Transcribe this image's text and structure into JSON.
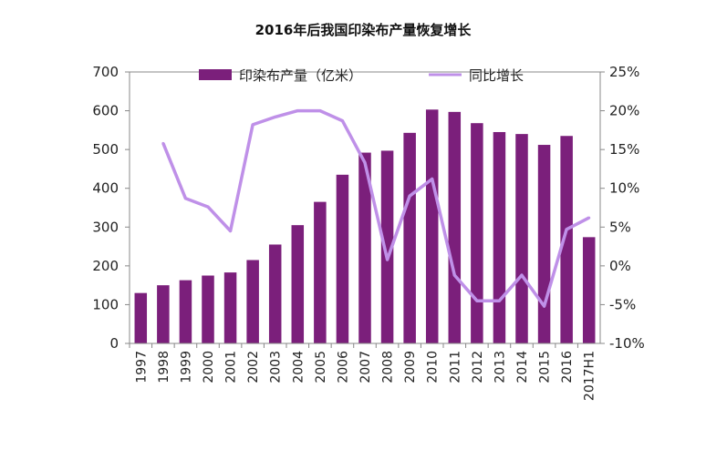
{
  "chart_data": {
    "type": "bar+line",
    "title": "2016年后我国印染布产量恢复增长",
    "categories": [
      "1997",
      "1998",
      "1999",
      "2000",
      "2001",
      "2002",
      "2003",
      "2004",
      "2005",
      "2006",
      "2007",
      "2008",
      "2009",
      "2010",
      "2011",
      "2012",
      "2013",
      "2014",
      "2015",
      "2016",
      "2017H1"
    ],
    "series": [
      {
        "name": "印染布产量（亿米）",
        "type": "bar",
        "axis": "left",
        "color": "#7b1f7b",
        "values": [
          130,
          150,
          163,
          175,
          183,
          215,
          255,
          305,
          365,
          435,
          492,
          497,
          543,
          603,
          597,
          568,
          545,
          540,
          512,
          535,
          274
        ]
      },
      {
        "name": "同比增长",
        "type": "line",
        "axis": "right",
        "color": "#bf90e8",
        "values": [
          null,
          15.8,
          8.7,
          7.6,
          4.5,
          18.2,
          19.2,
          20.0,
          20.0,
          18.7,
          13.3,
          0.8,
          9.0,
          11.2,
          -1.2,
          -4.5,
          -4.5,
          -1.2,
          -5.2,
          4.7,
          6.2
        ]
      }
    ],
    "y_left": {
      "ticks": [
        0,
        100,
        200,
        300,
        400,
        500,
        600,
        700
      ],
      "ylim": [
        0,
        700
      ]
    },
    "y_right": {
      "ticks": [
        "25%",
        "20%",
        "15%",
        "10%",
        "5%",
        "0%",
        "-5%",
        "-10%"
      ],
      "ylim": [
        -10,
        25
      ]
    },
    "legend": {
      "placement": "top"
    },
    "grid": false
  }
}
